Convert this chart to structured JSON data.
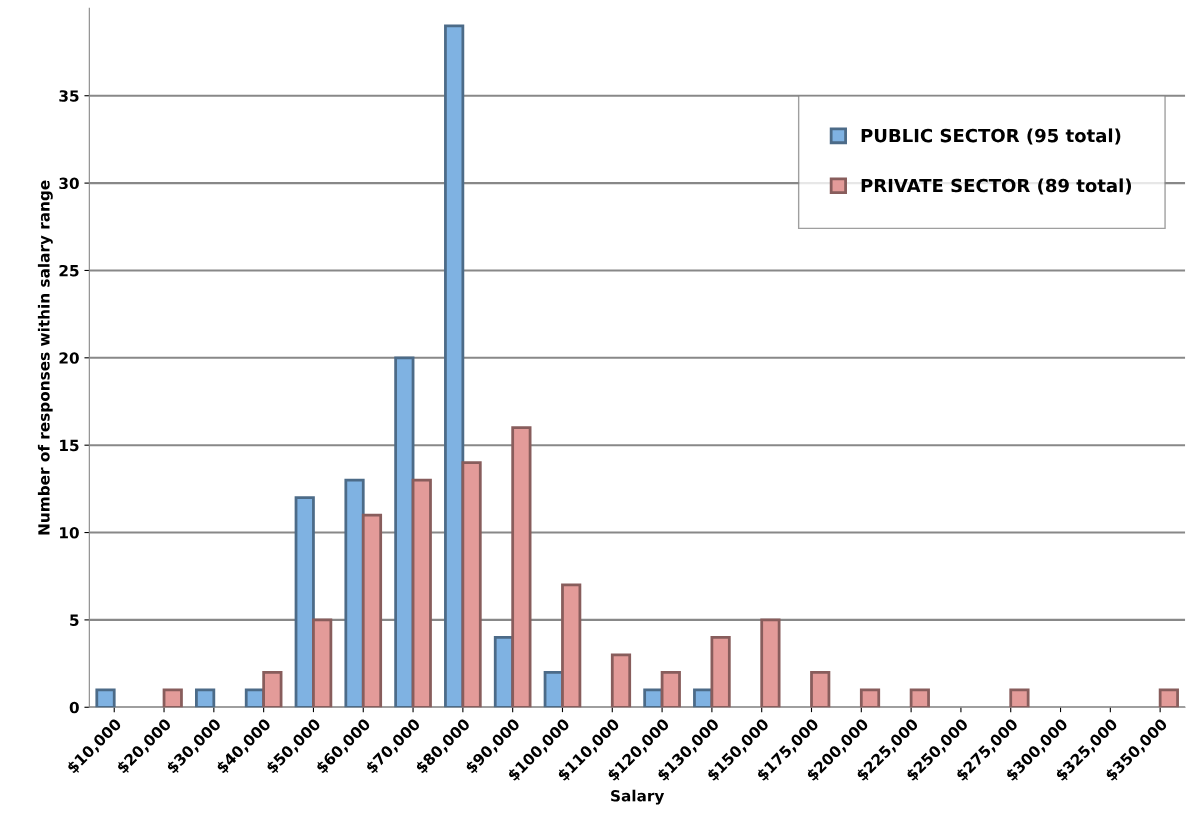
{
  "chart_data": {
    "type": "bar",
    "xlabel": "Salary",
    "ylabel": "Number of responses within salary range",
    "categories": [
      "$10,000",
      "$20,000",
      "$30,000",
      "$40,000",
      "$50,000",
      "$60,000",
      "$70,000",
      "$80,000",
      "$90,000",
      "$100,000",
      "$110,000",
      "$120,000",
      "$130,000",
      "$150,000",
      "$175,000",
      "$200,000",
      "$225,000",
      "$250,000",
      "$275,000",
      "$300,000",
      "$325,000",
      "$350,000"
    ],
    "series": [
      {
        "name": "PUBLIC SECTOR (95 total)",
        "color": "#7fb2e2",
        "values": [
          1,
          0,
          1,
          1,
          12,
          13,
          20,
          39,
          4,
          2,
          0,
          1,
          1,
          0,
          0,
          0,
          0,
          0,
          0,
          0,
          0,
          0
        ]
      },
      {
        "name": "PRIVATE SECTOR (89 total)",
        "color": "#e39b99",
        "values": [
          0,
          1,
          0,
          2,
          5,
          11,
          13,
          14,
          16,
          7,
          3,
          2,
          4,
          5,
          2,
          1,
          1,
          0,
          1,
          0,
          0,
          1
        ]
      }
    ],
    "ylim": [
      0,
      40
    ],
    "yticks": [
      0,
      5,
      10,
      15,
      20,
      25,
      30,
      35
    ],
    "grid": "y",
    "legend": "right"
  }
}
